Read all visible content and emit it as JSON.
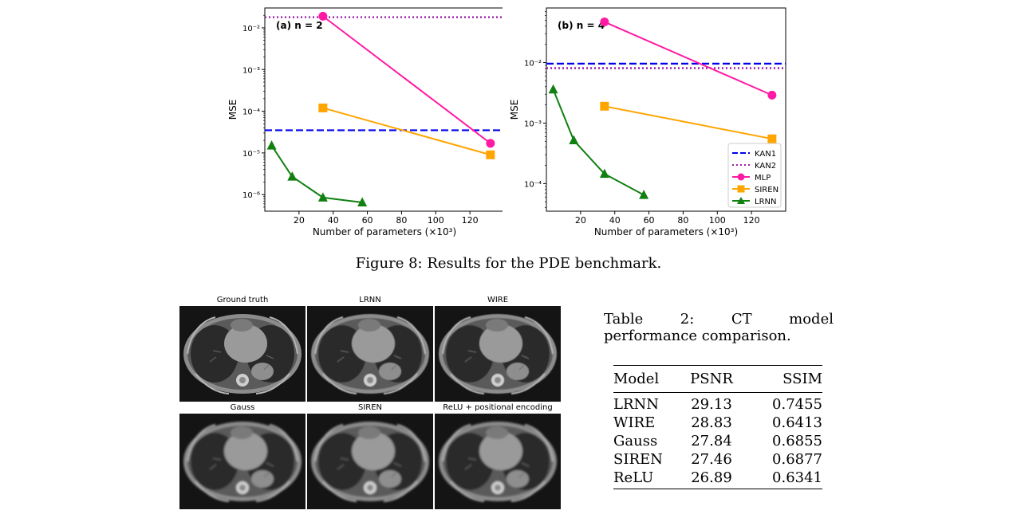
{
  "chart_data": [
    {
      "type": "line",
      "panel_label": "(a) n = 2",
      "xlabel": "Number of parameters (×10³)",
      "ylabel": "MSE",
      "xlim": [
        0,
        140
      ],
      "ylim": [
        4e-07,
        0.03
      ],
      "yscale": "log",
      "xticks": [
        20,
        40,
        60,
        80,
        100,
        120
      ],
      "yticks": [
        1e-06,
        1e-05,
        0.0001,
        0.001,
        0.01
      ],
      "ytick_labels": [
        "10⁻⁶",
        "10⁻⁵",
        "10⁻⁴",
        "10⁻³",
        "10⁻²"
      ],
      "grid": false,
      "series": [
        {
          "name": "KAN1",
          "color": "#0000ee",
          "style": "dashed",
          "hline": 3.5e-05
        },
        {
          "name": "KAN2",
          "color": "#9b1fa6",
          "style": "dotted",
          "hline": 0.018
        },
        {
          "name": "MLP",
          "color": "#ff1aa3",
          "marker": "circle",
          "x": [
            34,
            132
          ],
          "y": [
            0.019,
            1.7e-05
          ]
        },
        {
          "name": "SIREN",
          "color": "#ffa500",
          "marker": "square",
          "x": [
            34,
            132
          ],
          "y": [
            0.00012,
            9e-06
          ]
        },
        {
          "name": "LRNN",
          "color": "#118011",
          "marker": "triangle",
          "x": [
            4,
            16,
            34,
            57
          ],
          "y": [
            1.5e-05,
            2.7e-06,
            8.5e-07,
            6.5e-07
          ]
        }
      ]
    },
    {
      "type": "line",
      "panel_label": "(b) n = 4",
      "xlabel": "Number of parameters (×10³)",
      "ylabel": "MSE",
      "xlim": [
        0,
        140
      ],
      "ylim": [
        3.5e-05,
        0.08
      ],
      "yscale": "log",
      "xticks": [
        20,
        40,
        60,
        80,
        100,
        120
      ],
      "yticks": [
        0.0001,
        0.001,
        0.01
      ],
      "ytick_labels": [
        "10⁻⁴",
        "10⁻³",
        "10⁻²"
      ],
      "grid": false,
      "legend": "bottom-right",
      "series": [
        {
          "name": "KAN1",
          "color": "#0000ee",
          "style": "dashed",
          "hline": 0.0096
        },
        {
          "name": "KAN2",
          "color": "#9b1fa6",
          "style": "dotted",
          "hline": 0.0081
        },
        {
          "name": "MLP",
          "color": "#ff1aa3",
          "marker": "circle",
          "x": [
            34,
            132
          ],
          "y": [
            0.047,
            0.0029
          ]
        },
        {
          "name": "SIREN",
          "color": "#ffa500",
          "marker": "square",
          "x": [
            34,
            132
          ],
          "y": [
            0.0019,
            0.00055
          ]
        },
        {
          "name": "LRNN",
          "color": "#118011",
          "marker": "triangle",
          "x": [
            4,
            16,
            34,
            57
          ],
          "y": [
            0.0036,
            0.00052,
            0.000145,
            6.5e-05
          ]
        }
      ]
    }
  ],
  "figure_caption": "Figure 8: Results for the PDE benchmark.",
  "ct_panels": [
    {
      "title": "Ground truth"
    },
    {
      "title": "LRNN"
    },
    {
      "title": "WIRE"
    },
    {
      "title": "Gauss"
    },
    {
      "title": "SIREN"
    },
    {
      "title": "ReLU + positional encoding"
    }
  ],
  "table": {
    "caption": "Table 2: CT model performance comparison.",
    "headers": [
      "Model",
      "PSNR",
      "SSIM"
    ],
    "rows": [
      {
        "model": "LRNN",
        "psnr": "29.13",
        "ssim": "0.7455",
        "bold": true
      },
      {
        "model": "WIRE",
        "psnr": "28.83",
        "ssim": "0.6413"
      },
      {
        "model": "Gauss",
        "psnr": "27.84",
        "ssim": "0.6855"
      },
      {
        "model": "SIREN",
        "psnr": "27.46",
        "ssim": "0.6877"
      },
      {
        "model": "ReLU",
        "psnr": "26.89",
        "ssim": "0.6341"
      }
    ]
  }
}
